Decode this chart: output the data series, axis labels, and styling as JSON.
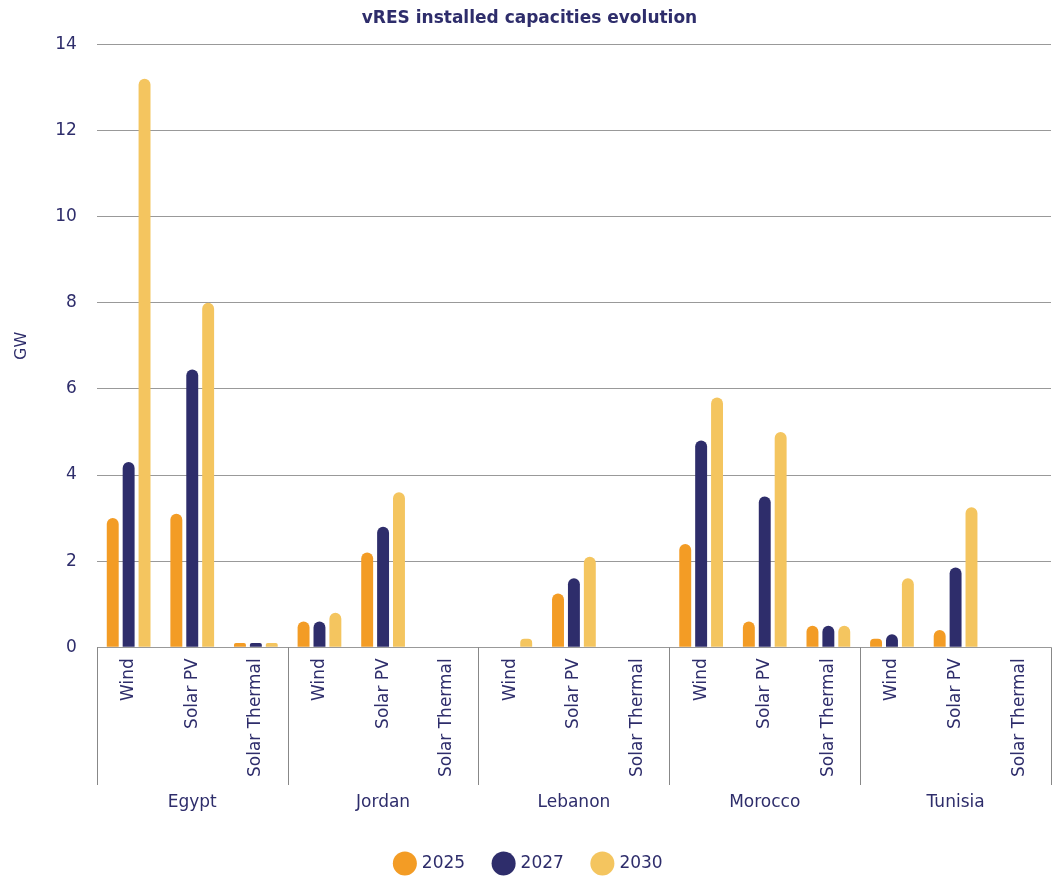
{
  "chart_data": {
    "type": "bar",
    "title": "vRES installed capacities evolution",
    "ylabel": "GW",
    "categories": [
      "Wind",
      "Solar PV",
      "Solar Thermal",
      "Wind",
      "Solar PV",
      "Solar Thermal",
      "Wind",
      "Solar PV",
      "Solar Thermal",
      "Wind",
      "Solar PV",
      "Solar Thermal",
      "Wind",
      "Solar PV",
      "Solar Thermal"
    ],
    "annotations": [
      "Egypt",
      "Jordan",
      "Lebanon",
      "Morocco",
      "Tunisia"
    ],
    "series": [
      {
        "name": "2025",
        "color": "#f39c25",
        "values": [
          3.0,
          3.1,
          0.1,
          0.6,
          2.2,
          0,
          0,
          1.25,
          0,
          2.4,
          0.6,
          0.5,
          0.2,
          0.4,
          0
        ]
      },
      {
        "name": "2027",
        "color": "#2e2d6b",
        "values": [
          4.3,
          6.45,
          0.1,
          0.6,
          2.8,
          0,
          0,
          1.6,
          0,
          4.8,
          3.5,
          0.5,
          0.3,
          1.85,
          0
        ]
      },
      {
        "name": "2030",
        "color": "#f4c55f",
        "values": [
          13.2,
          8.0,
          0.1,
          0.8,
          3.6,
          0,
          0.2,
          2.1,
          0,
          5.8,
          5.0,
          0.5,
          1.6,
          3.25,
          0
        ]
      }
    ],
    "ylim": [
      0,
      14
    ],
    "yticks": [
      0,
      2,
      4,
      6,
      8,
      10,
      12,
      14
    ],
    "grid": "y",
    "legend": "bottom"
  }
}
